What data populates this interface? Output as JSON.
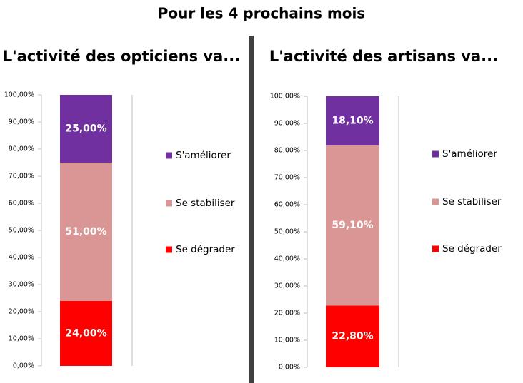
{
  "title": "Pour les 4 prochains mois",
  "chart_data": [
    {
      "type": "bar",
      "stacked": true,
      "title": "L'activité des opticiens va...",
      "categories": [
        null
      ],
      "series": [
        {
          "name": "Se dégrader",
          "color": "#ff0000",
          "values": [
            24
          ],
          "value_labels": [
            "24,00%"
          ]
        },
        {
          "name": "Se stabiliser",
          "color": "#d99694",
          "values": [
            51
          ],
          "value_labels": [
            "51,00%"
          ]
        },
        {
          "name": "S'améliorer",
          "color": "#7030a0",
          "values": [
            25
          ],
          "value_labels": [
            "25,00%"
          ]
        }
      ],
      "ylim": [
        0,
        100
      ],
      "yticks": [
        {
          "value": 0,
          "label": "0,00%"
        },
        {
          "value": 10,
          "label": "10,00%"
        },
        {
          "value": 20,
          "label": "20,00%"
        },
        {
          "value": 30,
          "label": "30,00%"
        },
        {
          "value": 40,
          "label": "40,00%"
        },
        {
          "value": 50,
          "label": "50,00%"
        },
        {
          "value": 60,
          "label": "60,00%"
        },
        {
          "value": 70,
          "label": "70,00%"
        },
        {
          "value": 80,
          "label": "80,00%"
        },
        {
          "value": 90,
          "label": "90,00%"
        },
        {
          "value": 100,
          "label": "100,00%"
        }
      ],
      "legend": "right"
    },
    {
      "type": "bar",
      "stacked": true,
      "title": "L'activité des artisans va...",
      "categories": [
        null
      ],
      "series": [
        {
          "name": "Se dégrader",
          "color": "#ff0000",
          "values": [
            22.8
          ],
          "value_labels": [
            "22,80%"
          ]
        },
        {
          "name": "Se stabiliser",
          "color": "#d99694",
          "values": [
            59.1
          ],
          "value_labels": [
            "59,10%"
          ]
        },
        {
          "name": "S'améliorer",
          "color": "#7030a0",
          "values": [
            18.1
          ],
          "value_labels": [
            "18,10%"
          ]
        }
      ],
      "ylim": [
        0,
        100
      ],
      "yticks": [
        {
          "value": 0,
          "label": "0,00%"
        },
        {
          "value": 10,
          "label": "10,00%"
        },
        {
          "value": 20,
          "label": "20,00%"
        },
        {
          "value": 30,
          "label": "30,00%"
        },
        {
          "value": 40,
          "label": "40,00%"
        },
        {
          "value": 50,
          "label": "50,00%"
        },
        {
          "value": 60,
          "label": "60,00%"
        },
        {
          "value": 70,
          "label": "70,00%"
        },
        {
          "value": 80,
          "label": "80,00%"
        },
        {
          "value": 90,
          "label": "90,00%"
        },
        {
          "value": 100,
          "label": "100,00%"
        }
      ],
      "legend": "right"
    }
  ]
}
